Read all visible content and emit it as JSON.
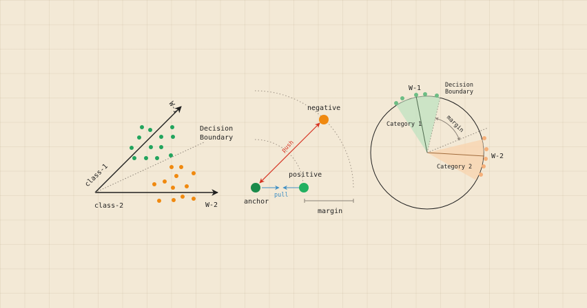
{
  "colors": {
    "ink": "#1f1f1f",
    "green": "#22a45d",
    "green_dark": "#1a8a4a",
    "orange": "#f0890f",
    "red": "#d6301f",
    "blue": "#3f8fc4",
    "green_light": "#8fcf9e",
    "orange_light": "#f5b07a",
    "sector_green": "#bfe1c0",
    "sector_orange": "#f8d4b0",
    "dotted": "#9a8f82"
  },
  "panel1": {
    "w1": "W-1",
    "w2": "W-2",
    "class1": "class-1",
    "class2": "class-2",
    "boundary_line1": "Decision",
    "boundary_line2": "Boundary"
  },
  "panel2": {
    "negative": "negative",
    "positive": "positive",
    "anchor": "anchor",
    "push": "push",
    "pull": "pull",
    "margin": "margin"
  },
  "panel3": {
    "w1": "W-1",
    "w2": "W-2",
    "boundary_line1": "Decision",
    "boundary_line2": "Boundary",
    "margin": "margin",
    "category1": "Category 1",
    "category2": "Category 2"
  }
}
